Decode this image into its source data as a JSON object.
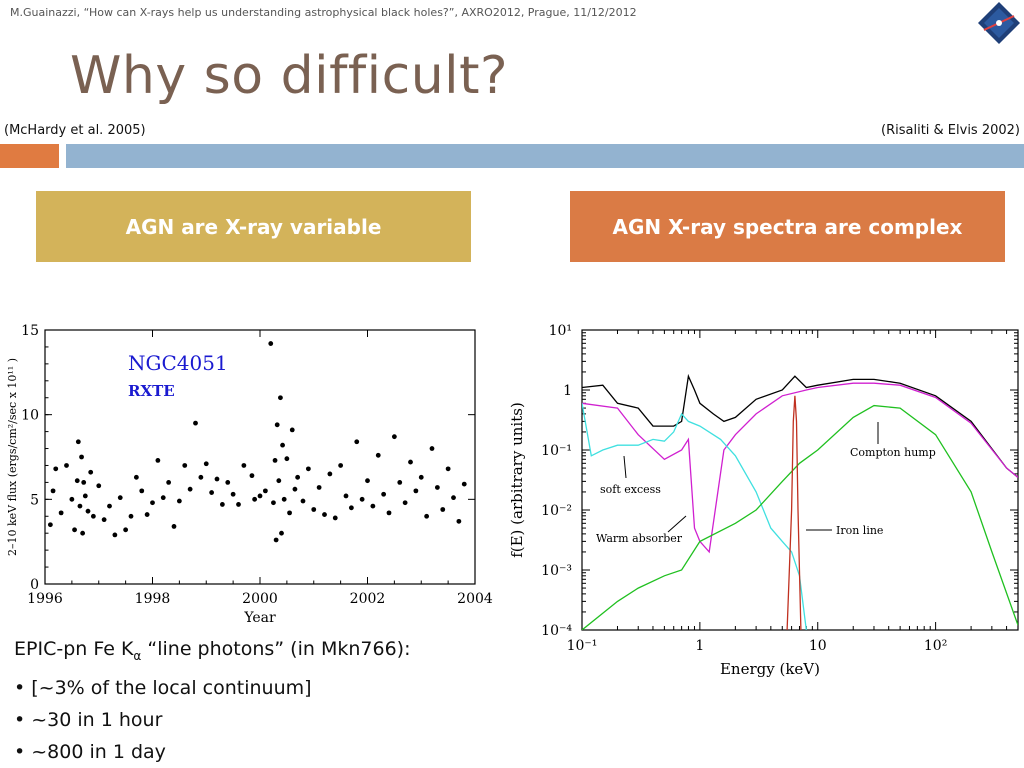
{
  "header": {
    "citation": "M.Guainazzi, “How can X-rays help us understanding astrophysical black holes?”, AXRO2012, Prague, 11/12/2012"
  },
  "title": "Why so difficult?",
  "refs": {
    "left": "(McHardy et al. 2005)",
    "right": "(Risaliti & Elvis 2002)"
  },
  "boxes": {
    "left": "AGN are X-ray variable",
    "right": "AGN X-ray spectra are complex"
  },
  "colors": {
    "accent_orange": "#e07b41",
    "accent_blue": "#93b3d0",
    "box_gold": "#d3b35a",
    "box_orange": "#da7b45",
    "title_brown": "#7a6152"
  },
  "bullets": {
    "intro_prefix": "EPIC-pn Fe K",
    "intro_sub": "α",
    "intro_suffix": " “line photons” (in Mkn766):",
    "items": [
      "• [~3% of the local continuum]",
      "• ~30 in 1 hour",
      "• ~800 in 1 day"
    ]
  },
  "chart_data": [
    {
      "type": "scatter",
      "annotations": [
        "NGC4051",
        "RXTE"
      ],
      "xlabel": "Year",
      "ylabel": "2–10 keV flux  (ergs/cm²/sec x 10¹¹ )",
      "xlim": [
        1996,
        2004
      ],
      "ylim": [
        0,
        15
      ],
      "x_ticks": [
        "1996",
        "1998",
        "2000",
        "2002",
        "2004"
      ],
      "y_ticks": [
        "0",
        "5",
        "10",
        "15"
      ],
      "series": [
        {
          "x": [
            1996.1,
            1996.15,
            1996.2,
            1996.3,
            1996.4,
            1996.5,
            1996.55,
            1996.6,
            1996.62,
            1996.65,
            1996.68,
            1996.7,
            1996.72,
            1996.75,
            1996.8,
            1996.85,
            1996.9,
            1997.0,
            1997.1,
            1997.2,
            1997.3,
            1997.4,
            1997.5,
            1997.6,
            1997.7,
            1997.8,
            1997.9,
            1998.0,
            1998.1,
            1998.2,
            1998.3,
            1998.4,
            1998.5,
            1998.6,
            1998.7,
            1998.8,
            1998.9,
            1999.0,
            1999.1,
            1999.2,
            1999.3,
            1999.4,
            1999.5,
            1999.6,
            1999.7,
            1999.9,
            1999.85,
            2000.0,
            2000.1,
            2000.2,
            2000.25,
            2000.28,
            2000.3,
            2000.32,
            2000.35,
            2000.38,
            2000.4,
            2000.42,
            2000.45,
            2000.5,
            2000.55,
            2000.6,
            2000.65,
            2000.7,
            2000.8,
            2000.9,
            2001.0,
            2001.1,
            2001.2,
            2001.3,
            2001.4,
            2001.5,
            2001.6,
            2001.7,
            2001.8,
            2001.9,
            2002.0,
            2002.1,
            2002.2,
            2002.3,
            2002.4,
            2002.5,
            2002.6,
            2002.7,
            2002.8,
            2002.9,
            2003.0,
            2003.1,
            2003.2,
            2003.3,
            2003.4,
            2003.5,
            2003.6,
            2003.7,
            2003.8
          ],
          "y": [
            3.5,
            5.5,
            6.8,
            4.2,
            7.0,
            5.0,
            3.2,
            6.1,
            8.4,
            4.6,
            7.5,
            3.0,
            6.0,
            5.2,
            4.3,
            6.6,
            4.0,
            5.8,
            3.8,
            4.6,
            2.9,
            5.1,
            3.2,
            4.0,
            6.3,
            5.5,
            4.1,
            4.8,
            7.3,
            5.1,
            6.0,
            3.4,
            4.9,
            7.0,
            5.6,
            9.5,
            6.3,
            7.1,
            5.4,
            6.2,
            4.7,
            6.0,
            5.3,
            4.7,
            7.0,
            5.0,
            6.4,
            5.2,
            5.5,
            14.2,
            4.8,
            7.3,
            2.6,
            9.4,
            6.1,
            11.0,
            3.0,
            8.2,
            5.0,
            7.4,
            4.2,
            9.1,
            5.6,
            6.3,
            4.9,
            6.8,
            4.4,
            5.7,
            4.1,
            6.5,
            3.9,
            7.0,
            5.2,
            4.5,
            8.4,
            5.0,
            6.1,
            4.6,
            7.6,
            5.3,
            4.2,
            8.7,
            6.0,
            4.8,
            7.2,
            5.5,
            6.3,
            4.0,
            8.0,
            5.7,
            4.4,
            6.8,
            5.1,
            3.7,
            5.9
          ]
        }
      ]
    },
    {
      "type": "line",
      "xlabel": "Energy (keV)",
      "ylabel": "f(E) (arbitrary units)",
      "x_scale": "log",
      "y_scale": "log",
      "xlim": [
        0.1,
        500
      ],
      "ylim": [
        0.0001,
        10
      ],
      "x_ticks": [
        "10⁻¹",
        "1",
        "10",
        "10²"
      ],
      "y_ticks": [
        "10⁻⁴",
        "10⁻³",
        "10⁻²",
        "10⁻¹",
        "1",
        "10¹"
      ],
      "annotations": [
        "Compton hump",
        "soft excess",
        "Iron line",
        "Warm absorber"
      ],
      "series": [
        {
          "name": "",
          "color": "#000000",
          "x": [
            0.1,
            0.15,
            0.2,
            0.3,
            0.4,
            0.5,
            0.6,
            0.7,
            0.8,
            0.9,
            1.0,
            1.3,
            1.6,
            2.0,
            3,
            5,
            6.4,
            8,
            10,
            20,
            30,
            50,
            100,
            200,
            400,
            500
          ],
          "y": [
            1.1,
            1.2,
            0.6,
            0.5,
            0.25,
            0.25,
            0.25,
            0.3,
            1.7,
            1.0,
            0.6,
            0.4,
            0.3,
            0.35,
            0.7,
            1.0,
            1.7,
            1.1,
            1.2,
            1.5,
            1.5,
            1.3,
            0.8,
            0.3,
            0.05,
            0.035
          ]
        },
        {
          "name": "",
          "color": "#d020d0",
          "x": [
            0.1,
            0.2,
            0.3,
            0.5,
            0.7,
            0.8,
            0.9,
            1.0,
            1.2,
            1.6,
            2.0,
            3,
            5,
            8,
            10,
            20,
            30,
            50,
            100,
            200,
            400,
            500
          ],
          "y": [
            0.6,
            0.5,
            0.18,
            0.07,
            0.1,
            0.15,
            0.005,
            0.003,
            0.002,
            0.1,
            0.18,
            0.4,
            0.8,
            1.0,
            1.1,
            1.3,
            1.3,
            1.2,
            0.75,
            0.28,
            0.05,
            0.035
          ]
        },
        {
          "name": "",
          "color": "#40e0e0",
          "x": [
            0.1,
            0.12,
            0.15,
            0.2,
            0.3,
            0.4,
            0.5,
            0.6,
            0.7,
            0.8,
            1.0,
            1.5,
            2,
            3,
            4,
            5,
            6,
            7,
            8
          ],
          "y": [
            0.6,
            0.08,
            0.1,
            0.12,
            0.12,
            0.15,
            0.14,
            0.2,
            0.4,
            0.3,
            0.25,
            0.15,
            0.08,
            0.02,
            0.005,
            0.003,
            0.002,
            0.0008,
            0.0001
          ]
        },
        {
          "name": "",
          "color": "#20c020",
          "x": [
            0.1,
            0.2,
            0.3,
            0.5,
            0.7,
            1.0,
            2,
            3,
            5,
            7,
            10,
            20,
            30,
            50,
            100,
            200,
            300,
            500
          ],
          "y": [
            0.0001,
            0.0003,
            0.0005,
            0.0008,
            0.001,
            0.003,
            0.006,
            0.01,
            0.03,
            0.06,
            0.1,
            0.35,
            0.55,
            0.5,
            0.18,
            0.02,
            0.002,
            0.00012
          ]
        },
        {
          "name": "",
          "color": "#c03020",
          "x": [
            5.5,
            6.0,
            6.2,
            6.4,
            6.6,
            6.8,
            7.2
          ],
          "y": [
            0.0001,
            0.01,
            0.3,
            0.8,
            0.3,
            0.01,
            0.0001
          ]
        }
      ]
    }
  ]
}
